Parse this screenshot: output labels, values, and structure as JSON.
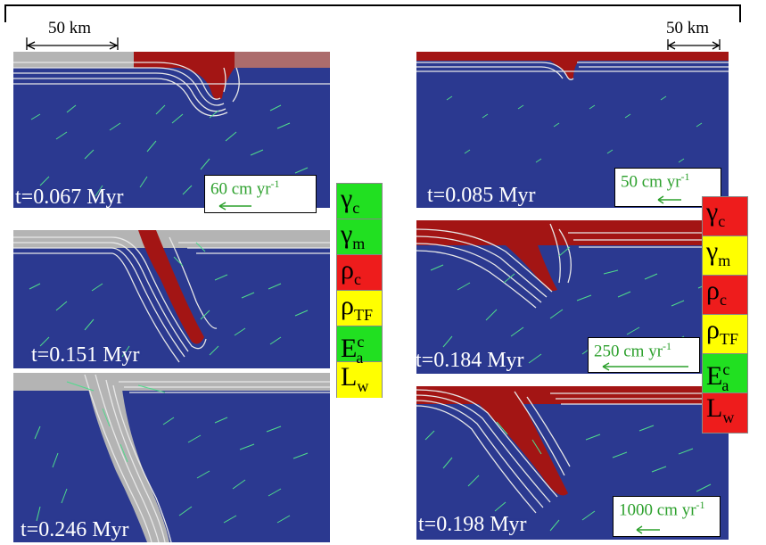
{
  "scale_left": "50 km",
  "scale_right": "50 km",
  "colors": {
    "mantle": "#2b3990",
    "crust": "#a31514",
    "plate_grey": "#b4b4b4",
    "vectors": "#4fdc8c",
    "green": "#21e021",
    "yellow": "#ffff00",
    "red": "#ee1c1c"
  },
  "panels": [
    {
      "id": "left-1",
      "time": "t=0.067 Myr",
      "velocity": "60 cm yr",
      "unit_sup": "-1"
    },
    {
      "id": "left-2",
      "time": "t=0.151 Myr"
    },
    {
      "id": "left-3",
      "time": "t=0.246 Myr"
    },
    {
      "id": "right-1",
      "time": "t=0.085 Myr",
      "velocity": "50 cm yr",
      "unit_sup": "-1"
    },
    {
      "id": "right-2",
      "time": "t=0.184 Myr",
      "velocity": "250 cm yr",
      "unit_sup": "-1"
    },
    {
      "id": "right-3",
      "time": "t=0.198 Myr",
      "velocity": "1000 cm yr",
      "unit_sup": "-1"
    }
  ],
  "params_left": [
    {
      "sym": "γ",
      "sub": "c",
      "sup": "",
      "color": "green"
    },
    {
      "sym": "γ",
      "sub": "m",
      "sup": "",
      "color": "green"
    },
    {
      "sym": "ρ",
      "sub": "c",
      "sup": "",
      "color": "red"
    },
    {
      "sym": "ρ",
      "sub": "TF",
      "sup": "",
      "color": "yellow"
    },
    {
      "sym": "E",
      "sub": "a",
      "sup": "c",
      "color": "green"
    },
    {
      "sym": "L",
      "sub": "w",
      "sup": "",
      "color": "yellow"
    }
  ],
  "params_right": [
    {
      "sym": "γ",
      "sub": "c",
      "sup": "",
      "color": "red"
    },
    {
      "sym": "γ",
      "sub": "m",
      "sup": "",
      "color": "yellow"
    },
    {
      "sym": "ρ",
      "sub": "c",
      "sup": "",
      "color": "red"
    },
    {
      "sym": "ρ",
      "sub": "TF",
      "sup": "",
      "color": "yellow"
    },
    {
      "sym": "E",
      "sub": "a",
      "sup": "c",
      "color": "green"
    },
    {
      "sym": "L",
      "sub": "w",
      "sup": "",
      "color": "red"
    }
  ]
}
